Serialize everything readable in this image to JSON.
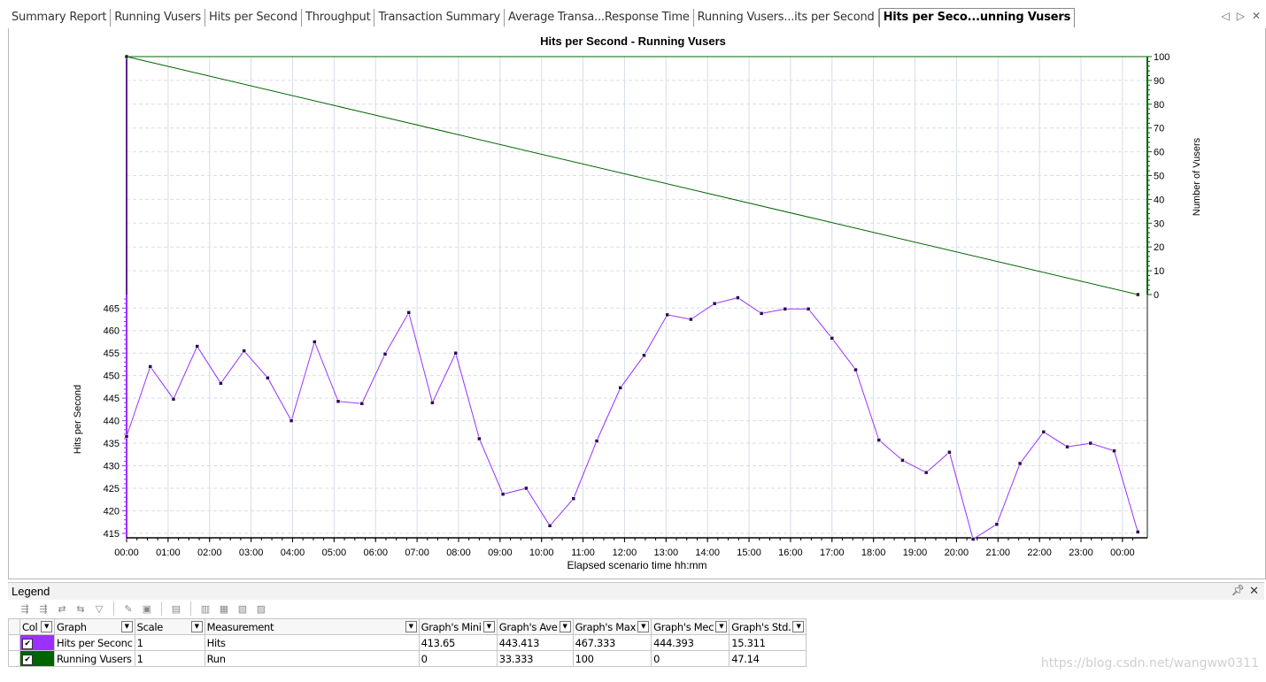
{
  "tabs": [
    {
      "label": "Summary Report"
    },
    {
      "label": "Running Vusers"
    },
    {
      "label": "Hits per Second"
    },
    {
      "label": "Throughput"
    },
    {
      "label": "Transaction Summary"
    },
    {
      "label": "Average Transa...Response Time"
    },
    {
      "label": "Running Vusers...its per Second"
    },
    {
      "label": "Hits per Seco...unning Vusers"
    }
  ],
  "active_tab_index": 7,
  "tab_nav": {
    "prev_icon": "triangle-left-icon",
    "next_icon": "triangle-right-icon",
    "close_icon": "close-icon"
  },
  "chart_data": {
    "type": "line",
    "title": "Hits per Second - Running Vusers",
    "xlabel": "Elapsed scenario time hh:mm",
    "ylabel": "Hits per Second",
    "y2label": "Number of Vusers",
    "x_ticks": [
      "00:00",
      "01:00",
      "02:00",
      "03:00",
      "04:00",
      "05:00",
      "06:00",
      "07:00",
      "08:00",
      "09:00",
      "10:00",
      "11:00",
      "12:00",
      "13:00",
      "14:00",
      "15:00",
      "16:00",
      "17:00",
      "18:00",
      "19:00",
      "20:00",
      "21:00",
      "22:00",
      "23:00",
      "00:00"
    ],
    "xlim": [
      0,
      24.6
    ],
    "ylim": [
      414,
      468
    ],
    "y_ticks": [
      "415",
      "420",
      "425",
      "430",
      "435",
      "440",
      "445",
      "450",
      "455",
      "460",
      "465"
    ],
    "y2lim": [
      0,
      100
    ],
    "y2_ticks": [
      "0",
      "10",
      "20",
      "30",
      "40",
      "50",
      "60",
      "70",
      "80",
      "90",
      "100"
    ],
    "grid": true,
    "series": [
      {
        "name": "Hits per Second",
        "axis": "left",
        "color": "#9b30ff",
        "x": [
          0,
          0.57,
          1.13,
          1.7,
          2.27,
          2.83,
          3.4,
          3.97,
          4.53,
          5.1,
          5.67,
          6.23,
          6.8,
          7.37,
          7.93,
          8.5,
          9.07,
          9.63,
          10.2,
          10.77,
          11.33,
          11.9,
          12.47,
          13.03,
          13.6,
          14.17,
          14.73,
          15.3,
          15.87,
          16.43,
          17.0,
          17.57,
          18.13,
          18.7,
          19.27,
          19.83,
          20.4,
          20.97,
          21.53,
          22.1,
          22.67,
          23.23,
          23.8,
          24.37
        ],
        "values": [
          436.5,
          452,
          444.8,
          456.5,
          448.3,
          455.5,
          449.5,
          440,
          457.5,
          444.3,
          443.8,
          454.8,
          464,
          444,
          455,
          436,
          423.7,
          425,
          416.7,
          422.7,
          435.5,
          447.3,
          454.5,
          463.5,
          462.5,
          466,
          467.3,
          463.8,
          464.8,
          464.8,
          458.3,
          451.3,
          435.7,
          431.2,
          428.5,
          433,
          413.7,
          417,
          430.5,
          437.5,
          434.2,
          435,
          433.3,
          415.3
        ]
      },
      {
        "name": "Running Vusers",
        "axis": "right",
        "color": "#006400",
        "x": [
          0,
          24.37
        ],
        "values": [
          100,
          0
        ]
      }
    ]
  },
  "legend": {
    "title": "Legend",
    "pin_icon": "pin-icon",
    "close_icon": "close-icon",
    "toolbar": [
      "show-all-icon",
      "hide-all-icon",
      "show-selected-icon",
      "hide-selected-icon",
      "filter-icon",
      "edit-icon",
      "configure-icon",
      "legend-icon",
      "columns-icon",
      "export-icon",
      "sort-icon",
      "save-icon"
    ],
    "columns": [
      "Col",
      "Graph",
      "Scale",
      "Measurement",
      "Graph's Mini",
      "Graph's Ave",
      "Graph's Max",
      "Graph's Mec",
      "Graph's Std."
    ],
    "rows": [
      {
        "color": "#9b30ff",
        "checked": true,
        "graph": "Hits per Seconc",
        "scale": "1",
        "measurement": "Hits",
        "min": "413.65",
        "avg": "443.413",
        "max": "467.333",
        "median": "444.393",
        "std": "15.311"
      },
      {
        "color": "#006400",
        "checked": true,
        "graph": "Running Vusers",
        "scale": "1",
        "measurement": "Run",
        "min": "0",
        "avg": "33.333",
        "max": "100",
        "median": "0",
        "std": "47.14"
      }
    ]
  },
  "watermark": "https://blog.csdn.net/wangww0311"
}
